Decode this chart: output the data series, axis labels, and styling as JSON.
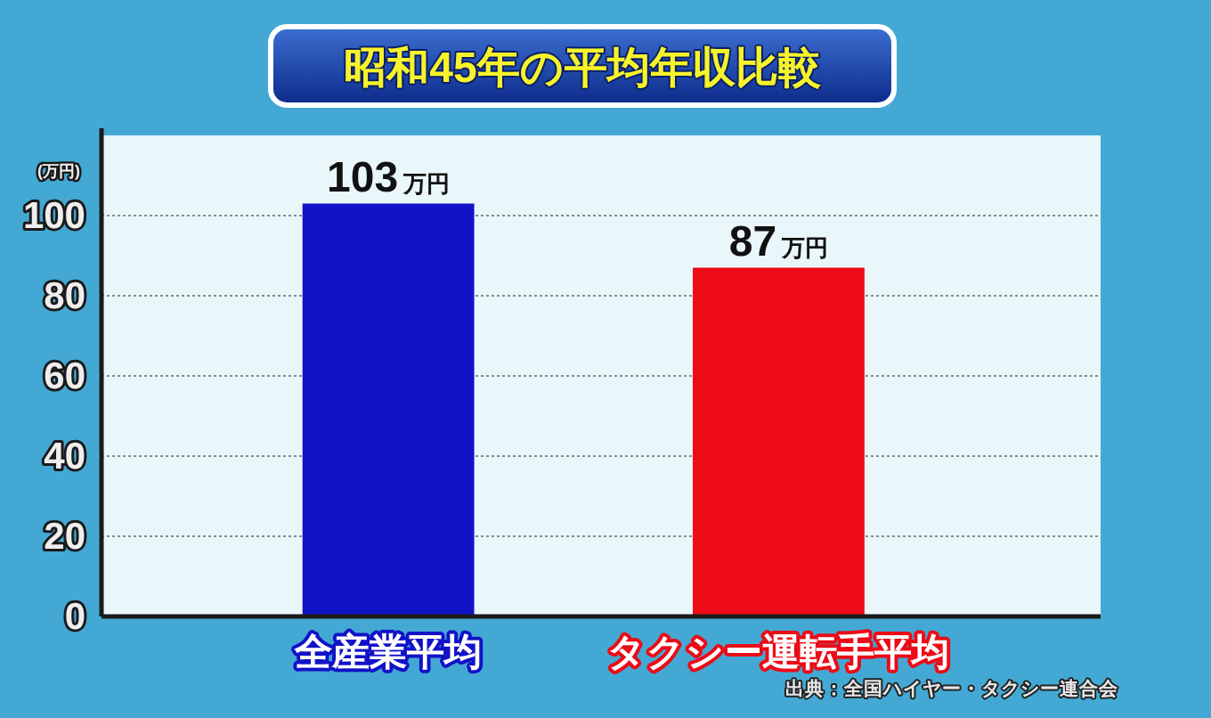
{
  "chart_data": {
    "type": "bar",
    "title": "昭和45年の平均年収比較",
    "ylabel": "(万円)",
    "categories": [
      "全産業平均",
      "タクシー運転手平均"
    ],
    "values": [
      103,
      87
    ],
    "colors": [
      "#1212c8",
      "#ec0b16"
    ],
    "value_labels": [
      "103万円",
      "87万円"
    ],
    "ylim": [
      0,
      120
    ],
    "yticks": [
      0,
      20,
      40,
      60,
      80,
      100
    ],
    "grid": "y",
    "annotations": [
      "出典：全国ハイヤー・タクシー連合会"
    ]
  }
}
